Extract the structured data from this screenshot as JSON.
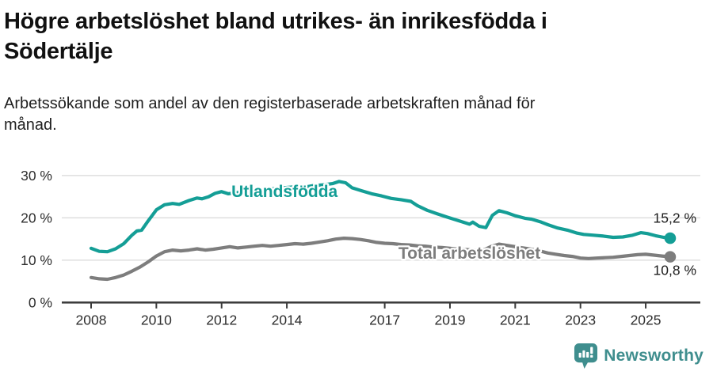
{
  "header": {
    "title_lines": [
      "Högre arbetslöshet bland utrikes- än inrikesfödda i",
      "Södertälje"
    ],
    "subtitle_lines": [
      "Arbetssökande som andel av den registerbaserade arbetskraften månad för",
      "månad."
    ]
  },
  "chart_data": {
    "type": "line",
    "title": "Högre arbetslöshet bland utrikes- än inrikesfödda i Södertälje",
    "subtitle": "Arbetssökande som andel av den registerbaserade arbetskraften månad för månad.",
    "unit": "%",
    "grid": "horizontal",
    "x_range": [
      2008,
      2025.75
    ],
    "ylim": [
      0,
      32
    ],
    "x_ticks": [
      2008,
      2010,
      2012,
      2014,
      2017,
      2019,
      2021,
      2023,
      2025
    ],
    "x_tick_labels": [
      "2008",
      "2010",
      "2012",
      "2014",
      "2017",
      "2019",
      "2021",
      "2023",
      "2025"
    ],
    "y_ticks": [
      0,
      10,
      20,
      30
    ],
    "y_tick_labels": [
      "0 %",
      "10 %",
      "20 %",
      "30 %"
    ],
    "axis_color": "#3a3a3a",
    "grid_color": "#d8d8d8",
    "tick_label_color": "#2e2e2e",
    "value_label_color": "#1c1c1c",
    "series": [
      {
        "name": "Utlandsfödda",
        "color": "#149e96",
        "end_value": 15.2,
        "end_label": "15,2 %",
        "value_label_side": "above",
        "label_pos": {
          "x": 2012.3,
          "y": 24.9
        },
        "points": [
          [
            2008.0,
            12.8
          ],
          [
            2008.25,
            12.1
          ],
          [
            2008.5,
            12.0
          ],
          [
            2008.75,
            12.7
          ],
          [
            2009.0,
            13.9
          ],
          [
            2009.25,
            15.9
          ],
          [
            2009.4,
            16.9
          ],
          [
            2009.55,
            17.1
          ],
          [
            2009.75,
            19.3
          ],
          [
            2010.0,
            21.9
          ],
          [
            2010.25,
            23.1
          ],
          [
            2010.5,
            23.4
          ],
          [
            2010.7,
            23.2
          ],
          [
            2011.0,
            24.1
          ],
          [
            2011.25,
            24.7
          ],
          [
            2011.4,
            24.5
          ],
          [
            2011.6,
            25.0
          ],
          [
            2011.8,
            25.8
          ],
          [
            2012.0,
            26.2
          ],
          [
            2012.2,
            25.7
          ],
          [
            2012.4,
            25.9
          ],
          [
            2012.6,
            26.1
          ],
          [
            2012.8,
            26.0
          ],
          [
            2013.0,
            26.4
          ],
          [
            2013.3,
            26.6
          ],
          [
            2013.6,
            26.9
          ],
          [
            2013.9,
            27.1
          ],
          [
            2014.2,
            27.3
          ],
          [
            2014.5,
            27.2
          ],
          [
            2014.8,
            27.6
          ],
          [
            2015.1,
            27.8
          ],
          [
            2015.4,
            28.1
          ],
          [
            2015.6,
            28.6
          ],
          [
            2015.8,
            28.3
          ],
          [
            2016.0,
            27.1
          ],
          [
            2016.3,
            26.4
          ],
          [
            2016.6,
            25.7
          ],
          [
            2016.9,
            25.2
          ],
          [
            2017.2,
            24.6
          ],
          [
            2017.5,
            24.3
          ],
          [
            2017.8,
            23.9
          ],
          [
            2018.0,
            22.9
          ],
          [
            2018.3,
            21.8
          ],
          [
            2018.6,
            21.0
          ],
          [
            2018.9,
            20.2
          ],
          [
            2019.2,
            19.5
          ],
          [
            2019.4,
            19.0
          ],
          [
            2019.6,
            18.5
          ],
          [
            2019.7,
            19.0
          ],
          [
            2019.9,
            18.0
          ],
          [
            2020.1,
            17.7
          ],
          [
            2020.3,
            20.6
          ],
          [
            2020.5,
            21.7
          ],
          [
            2020.75,
            21.2
          ],
          [
            2021.0,
            20.5
          ],
          [
            2021.3,
            19.9
          ],
          [
            2021.5,
            19.7
          ],
          [
            2021.8,
            19.0
          ],
          [
            2022.0,
            18.4
          ],
          [
            2022.3,
            17.6
          ],
          [
            2022.6,
            17.1
          ],
          [
            2022.9,
            16.4
          ],
          [
            2023.1,
            16.1
          ],
          [
            2023.4,
            15.9
          ],
          [
            2023.7,
            15.7
          ],
          [
            2024.0,
            15.4
          ],
          [
            2024.3,
            15.5
          ],
          [
            2024.6,
            15.9
          ],
          [
            2024.85,
            16.5
          ],
          [
            2025.05,
            16.3
          ],
          [
            2025.3,
            15.8
          ],
          [
            2025.55,
            15.4
          ],
          [
            2025.75,
            15.2
          ]
        ]
      },
      {
        "name": "Total arbetslöshet",
        "color": "#7d7d7d",
        "end_value": 10.8,
        "end_label": "10,8 %",
        "value_label_side": "below",
        "label_pos": {
          "x": 2017.42,
          "y": 10.35
        },
        "points": [
          [
            2008.0,
            5.9
          ],
          [
            2008.25,
            5.6
          ],
          [
            2008.5,
            5.5
          ],
          [
            2008.75,
            5.9
          ],
          [
            2009.0,
            6.5
          ],
          [
            2009.25,
            7.4
          ],
          [
            2009.5,
            8.4
          ],
          [
            2009.75,
            9.6
          ],
          [
            2010.0,
            11.0
          ],
          [
            2010.25,
            12.0
          ],
          [
            2010.5,
            12.4
          ],
          [
            2010.75,
            12.2
          ],
          [
            2011.0,
            12.4
          ],
          [
            2011.25,
            12.7
          ],
          [
            2011.5,
            12.4
          ],
          [
            2011.75,
            12.6
          ],
          [
            2012.0,
            12.9
          ],
          [
            2012.25,
            13.2
          ],
          [
            2012.5,
            12.9
          ],
          [
            2012.75,
            13.1
          ],
          [
            2013.0,
            13.3
          ],
          [
            2013.25,
            13.5
          ],
          [
            2013.5,
            13.3
          ],
          [
            2013.75,
            13.5
          ],
          [
            2014.0,
            13.7
          ],
          [
            2014.25,
            13.9
          ],
          [
            2014.5,
            13.8
          ],
          [
            2014.75,
            14.0
          ],
          [
            2015.0,
            14.3
          ],
          [
            2015.25,
            14.6
          ],
          [
            2015.5,
            15.0
          ],
          [
            2015.75,
            15.2
          ],
          [
            2016.0,
            15.1
          ],
          [
            2016.25,
            14.9
          ],
          [
            2016.5,
            14.6
          ],
          [
            2016.75,
            14.2
          ],
          [
            2017.0,
            14.0
          ],
          [
            2017.25,
            13.9
          ],
          [
            2017.5,
            13.7
          ],
          [
            2017.75,
            13.6
          ],
          [
            2018.0,
            13.4
          ],
          [
            2018.25,
            13.3
          ],
          [
            2018.5,
            13.1
          ],
          [
            2018.75,
            13.0
          ],
          [
            2019.0,
            12.8
          ],
          [
            2019.25,
            12.6
          ],
          [
            2019.5,
            12.5
          ],
          [
            2019.75,
            12.4
          ],
          [
            2020.0,
            12.3
          ],
          [
            2020.25,
            13.2
          ],
          [
            2020.5,
            13.8
          ],
          [
            2020.75,
            13.5
          ],
          [
            2021.0,
            13.2
          ],
          [
            2021.25,
            12.9
          ],
          [
            2021.5,
            12.6
          ],
          [
            2021.75,
            12.2
          ],
          [
            2022.0,
            11.7
          ],
          [
            2022.25,
            11.4
          ],
          [
            2022.5,
            11.1
          ],
          [
            2022.75,
            10.9
          ],
          [
            2023.0,
            10.5
          ],
          [
            2023.25,
            10.4
          ],
          [
            2023.5,
            10.5
          ],
          [
            2023.75,
            10.6
          ],
          [
            2024.0,
            10.7
          ],
          [
            2024.25,
            10.9
          ],
          [
            2024.5,
            11.1
          ],
          [
            2024.75,
            11.3
          ],
          [
            2025.0,
            11.4
          ],
          [
            2025.25,
            11.2
          ],
          [
            2025.5,
            11.0
          ],
          [
            2025.75,
            10.8
          ]
        ]
      }
    ]
  },
  "footer": {
    "brand": "Newsworthy",
    "brand_color": "#3f8e8e"
  }
}
